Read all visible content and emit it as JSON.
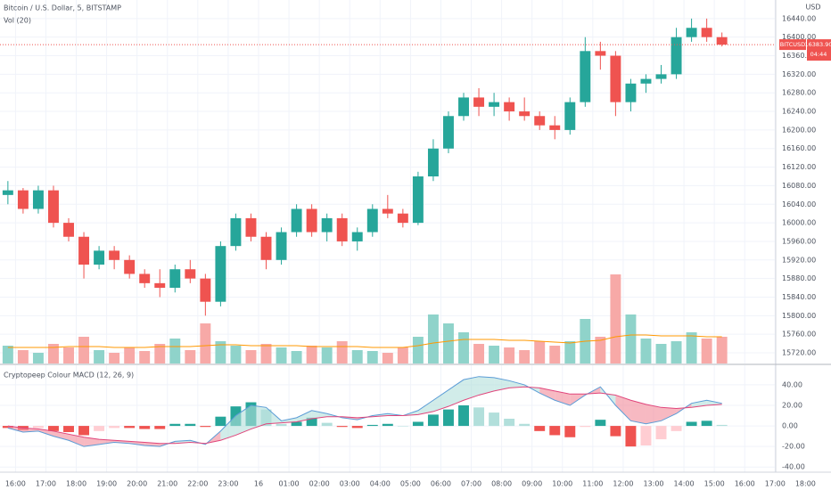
{
  "chart_data": [
    {
      "type": "candlestick",
      "title": "Bitcoin / U.S. Dollar, 5, BITSTAMP",
      "volume_label": "Vol (20)",
      "currency": "USD",
      "symbol": "BITCUSD",
      "countdown": "04:44",
      "last_price": {
        "value": 16383.9,
        "label": "16383.90"
      },
      "x": [
        -0.25,
        0.25,
        0.75,
        1.25,
        1.75,
        2.25,
        2.75,
        3.25,
        3.75,
        4.25,
        4.75,
        5.25,
        5.75,
        6.25,
        6.75,
        7.25,
        7.75,
        8.25,
        8.75,
        9.25,
        9.75,
        10.25,
        10.75,
        11.25,
        11.75,
        12.25,
        12.75,
        13.25,
        13.75,
        14.25,
        14.75,
        15.25,
        15.75,
        16.25,
        16.75,
        17.25,
        17.75,
        18.25,
        18.75,
        19.25,
        19.75,
        20.25,
        20.75,
        21.25,
        21.75,
        22.25,
        22.75,
        23.25
      ],
      "open": [
        16060,
        16070,
        16030,
        16070,
        16000,
        15970,
        15910,
        15940,
        15920,
        15890,
        15870,
        15860,
        15900,
        15880,
        15830,
        15950,
        16010,
        15970,
        15920,
        15980,
        16030,
        15980,
        16010,
        15960,
        15980,
        16030,
        16020,
        16000,
        16100,
        16160,
        16230,
        16270,
        16250,
        16260,
        16240,
        16230,
        16210,
        16200,
        16260,
        16370,
        16360,
        16260,
        16300,
        16310,
        16320,
        16400,
        16420,
        16400
      ],
      "high": [
        16090,
        16075,
        16080,
        16080,
        16010,
        15980,
        15950,
        15950,
        15930,
        15900,
        15900,
        15910,
        15920,
        15890,
        15960,
        16020,
        16020,
        15980,
        15990,
        16040,
        16040,
        16020,
        16020,
        15990,
        16040,
        16060,
        16030,
        16110,
        16180,
        16240,
        16280,
        16290,
        16280,
        16270,
        16270,
        16240,
        16230,
        16270,
        16400,
        16390,
        16370,
        16310,
        16320,
        16340,
        16420,
        16440,
        16440,
        16410
      ],
      "low": [
        16040,
        16020,
        16020,
        15990,
        15960,
        15880,
        15900,
        15900,
        15880,
        15860,
        15840,
        15850,
        15870,
        15800,
        15820,
        15940,
        15960,
        15900,
        15910,
        15970,
        15970,
        15960,
        15950,
        15940,
        15970,
        16010,
        15990,
        15995,
        16090,
        16150,
        16220,
        16230,
        16230,
        16220,
        16220,
        16200,
        16180,
        16190,
        16250,
        16330,
        16230,
        16240,
        16280,
        16300,
        16310,
        16390,
        16390,
        16380
      ],
      "close": [
        16070,
        16030,
        16070,
        16000,
        15970,
        15910,
        15940,
        15920,
        15890,
        15870,
        15860,
        15900,
        15880,
        15830,
        15950,
        16010,
        15970,
        15920,
        15980,
        16030,
        15980,
        16010,
        15960,
        15980,
        16030,
        16020,
        16000,
        16100,
        16160,
        16230,
        16270,
        16250,
        16260,
        16240,
        16230,
        16210,
        16200,
        16260,
        16370,
        16360,
        16260,
        16300,
        16310,
        16320,
        16400,
        16420,
        16400,
        16383.9
      ],
      "volume": [
        20,
        15,
        12,
        22,
        18,
        30,
        15,
        12,
        18,
        14,
        22,
        28,
        15,
        45,
        25,
        20,
        15,
        22,
        18,
        14,
        20,
        18,
        25,
        15,
        14,
        12,
        18,
        30,
        55,
        45,
        35,
        22,
        20,
        18,
        15,
        25,
        20,
        25,
        50,
        30,
        100,
        55,
        28,
        22,
        25,
        35,
        28,
        30
      ],
      "volume_ma": [
        18,
        18,
        18,
        18,
        19,
        19,
        19,
        18,
        18,
        18,
        19,
        19,
        19,
        20,
        21,
        21,
        20,
        20,
        20,
        20,
        19,
        19,
        19,
        19,
        18,
        18,
        18,
        20,
        23,
        25,
        27,
        27,
        27,
        26,
        26,
        25,
        24,
        23,
        25,
        26,
        30,
        32,
        32,
        31,
        31,
        31,
        30,
        30
      ],
      "colors": {
        "up": "#26a69a",
        "down": "#ef5350",
        "up_volume": "#8fd3ca",
        "down_volume": "#f7a9a7",
        "volume_ma": "#ff9800"
      },
      "xlim": [
        -0.51,
        26.84
      ],
      "ylim": [
        15697,
        16480
      ],
      "xticks": [
        {
          "value": 0,
          "label": "16:00"
        },
        {
          "value": 1,
          "label": "17:00"
        },
        {
          "value": 2,
          "label": "18:00"
        },
        {
          "value": 3,
          "label": "19:00"
        },
        {
          "value": 4,
          "label": "20:00"
        },
        {
          "value": 5,
          "label": "21:00"
        },
        {
          "value": 6,
          "label": "22:00"
        },
        {
          "value": 7,
          "label": "23:00"
        },
        {
          "value": 8,
          "label": "16"
        },
        {
          "value": 9,
          "label": "01:00"
        },
        {
          "value": 10,
          "label": "02:00"
        },
        {
          "value": 11,
          "label": "03:00"
        },
        {
          "value": 12,
          "label": "04:00"
        },
        {
          "value": 13,
          "label": "05:00"
        },
        {
          "value": 14,
          "label": "06:00"
        },
        {
          "value": 15,
          "label": "07:00"
        },
        {
          "value": 16,
          "label": "08:00"
        },
        {
          "value": 17,
          "label": "09:00"
        },
        {
          "value": 18,
          "label": "10:00"
        },
        {
          "value": 19,
          "label": "11:00"
        },
        {
          "value": 20,
          "label": "12:00"
        },
        {
          "value": 21,
          "label": "13:00"
        },
        {
          "value": 22,
          "label": "14:00"
        },
        {
          "value": 23,
          "label": "15:00"
        },
        {
          "value": 24,
          "label": "16:00"
        },
        {
          "value": 25,
          "label": "17:00"
        },
        {
          "value": 26,
          "label": "18:00"
        }
      ],
      "yticks": [
        {
          "value": 15720,
          "label": "15720.00"
        },
        {
          "value": 15760,
          "label": "15760.00"
        },
        {
          "value": 15800,
          "label": "15800.00"
        },
        {
          "value": 15840,
          "label": "15840.00"
        },
        {
          "value": 15880,
          "label": "15880.00"
        },
        {
          "value": 15920,
          "label": "15920.00"
        },
        {
          "value": 15960,
          "label": "15960.00"
        },
        {
          "value": 16000,
          "label": "16000.00"
        },
        {
          "value": 16040,
          "label": "16040.00"
        },
        {
          "value": 16080,
          "label": "16080.00"
        },
        {
          "value": 16120,
          "label": "16120.00"
        },
        {
          "value": 16160,
          "label": "16160.00"
        },
        {
          "value": 16200,
          "label": "16200.00"
        },
        {
          "value": 16240,
          "label": "16240.00"
        },
        {
          "value": 16280,
          "label": "16280.00"
        },
        {
          "value": 16320,
          "label": "16320.00"
        },
        {
          "value": 16360,
          "label": "16360.00"
        },
        {
          "value": 16400,
          "label": "16400.00"
        },
        {
          "value": 16440,
          "label": "16440.00"
        }
      ],
      "grid": true
    },
    {
      "type": "macd",
      "title": "Cryptopeep Colour MACD (12, 26, 9)",
      "macd": [
        -2,
        -6,
        -5,
        -10,
        -14,
        -20,
        -18,
        -16,
        -17,
        -19,
        -20,
        -15,
        -14,
        -18,
        -5,
        10,
        20,
        18,
        5,
        8,
        15,
        12,
        8,
        6,
        10,
        12,
        10,
        15,
        25,
        35,
        45,
        48,
        47,
        44,
        40,
        32,
        25,
        20,
        30,
        38,
        20,
        5,
        2,
        5,
        12,
        22,
        25,
        22
      ],
      "signal": [
        0,
        -2,
        -3,
        -5,
        -8,
        -11,
        -13,
        -14,
        -15,
        -16,
        -17,
        -17,
        -16,
        -17,
        -14,
        -9,
        -3,
        2,
        3,
        4,
        7,
        9,
        9,
        8,
        9,
        10,
        10,
        11,
        14,
        19,
        25,
        30,
        34,
        37,
        38,
        37,
        34,
        31,
        31,
        32,
        30,
        25,
        21,
        18,
        17,
        18,
        20,
        21
      ],
      "histogram": [
        -2,
        -4,
        -2,
        -5,
        -6,
        -9,
        -5,
        -2,
        -2,
        -3,
        -3,
        2,
        2,
        -1,
        9,
        19,
        23,
        16,
        2,
        4,
        8,
        3,
        -1,
        -2,
        1,
        2,
        0,
        4,
        11,
        16,
        20,
        18,
        13,
        7,
        2,
        -5,
        -9,
        -11,
        -1,
        6,
        -10,
        -20,
        -19,
        -13,
        -5,
        4,
        5,
        1
      ],
      "colors": {
        "macd": "#5b9cd6",
        "signal": "#e0457b",
        "cloud_up": "#b2dfdb",
        "cloud_down": "#f28b9a",
        "hist_up_rising": "#26a69a",
        "hist_up_falling": "#b2dfdb",
        "hist_down_falling": "#ef5350",
        "hist_down_rising": "#ffcdd2"
      },
      "ylim": [
        -45,
        59
      ],
      "yticks": [
        {
          "value": 40,
          "label": "40.00"
        },
        {
          "value": 20,
          "label": "20.00"
        },
        {
          "value": 0,
          "label": "0.00"
        },
        {
          "value": -20,
          "label": "-20.00"
        },
        {
          "value": -40,
          "label": "-40.00"
        }
      ],
      "grid": true
    }
  ]
}
